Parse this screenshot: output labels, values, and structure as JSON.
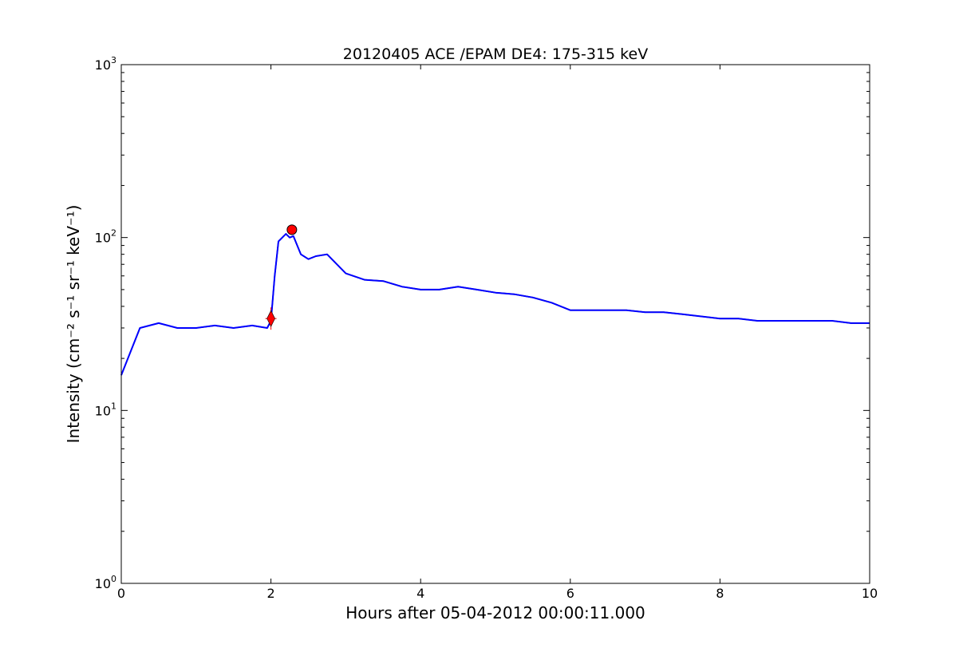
{
  "chart_data": {
    "type": "line",
    "title": "20120405 ACE /EPAM DE4: 175-315 keV",
    "xlabel": "Hours after 05-04-2012 00:00:11.000",
    "ylabel": "Intensity (cm⁻² s⁻¹ sr⁻¹ keV⁻¹)",
    "xlim": [
      0,
      10
    ],
    "ylim": [
      1,
      1000
    ],
    "yscale": "log",
    "grid": false,
    "x_ticks": [
      "0",
      "2",
      "4",
      "6",
      "8",
      "10"
    ],
    "y_ticks": [
      {
        "base": "10",
        "exp": "0"
      },
      {
        "base": "10",
        "exp": "1"
      },
      {
        "base": "10",
        "exp": "2"
      },
      {
        "base": "10",
        "exp": "3"
      }
    ],
    "series": [
      {
        "color": "#000000",
        "kind": "raw intensity",
        "x": [
          0,
          0.25,
          0.5,
          0.75,
          1,
          1.25,
          1.5,
          1.75,
          1.95,
          2,
          2.05,
          2.1,
          2.2,
          2.25,
          2.3,
          2.4,
          2.5,
          2.6,
          2.75,
          3,
          3.25,
          3.5,
          3.75,
          4,
          4.25,
          4.5,
          4.75,
          5,
          5.25,
          5.5,
          5.75,
          6,
          6.25,
          6.5,
          6.75,
          7,
          7.25,
          7.5,
          7.75,
          8,
          8.25,
          8.5,
          8.75,
          9,
          9.25,
          9.5,
          9.75,
          10
        ],
        "y": [
          16,
          30,
          32,
          30,
          30,
          31,
          30,
          31,
          30,
          33,
          60,
          95,
          105,
          100,
          102,
          80,
          75,
          78,
          80,
          62,
          57,
          56,
          52,
          50,
          50,
          52,
          50,
          48,
          47,
          45,
          42,
          38,
          38,
          38,
          38,
          37,
          37,
          36,
          35,
          34,
          34,
          33,
          33,
          33,
          33,
          33,
          32,
          32
        ]
      },
      {
        "color": "#0000ff",
        "kind": "smoothed intensity",
        "x": [
          0,
          0.25,
          0.5,
          0.75,
          1,
          1.25,
          1.5,
          1.75,
          1.95,
          2,
          2.05,
          2.1,
          2.2,
          2.25,
          2.3,
          2.4,
          2.5,
          2.6,
          2.75,
          3,
          3.25,
          3.5,
          3.75,
          4,
          4.25,
          4.5,
          4.75,
          5,
          5.25,
          5.5,
          5.75,
          6,
          6.25,
          6.5,
          6.75,
          7,
          7.25,
          7.5,
          7.75,
          8,
          8.25,
          8.5,
          8.75,
          9,
          9.25,
          9.5,
          9.75,
          10
        ],
        "y": [
          16,
          30,
          32,
          30,
          30,
          31,
          30,
          31,
          30,
          33,
          60,
          95,
          105,
          100,
          102,
          80,
          75,
          78,
          80,
          62,
          57,
          56,
          52,
          50,
          50,
          52,
          50,
          48,
          47,
          45,
          42,
          38,
          38,
          38,
          38,
          37,
          37,
          36,
          35,
          34,
          34,
          33,
          33,
          33,
          33,
          33,
          32,
          32
        ]
      }
    ],
    "markers": [
      {
        "shape": "diamond",
        "color": "#ff0000",
        "x": 2.0,
        "y": 34
      },
      {
        "shape": "circle",
        "color": "#ff0000",
        "x": 2.28,
        "y": 111
      }
    ]
  }
}
